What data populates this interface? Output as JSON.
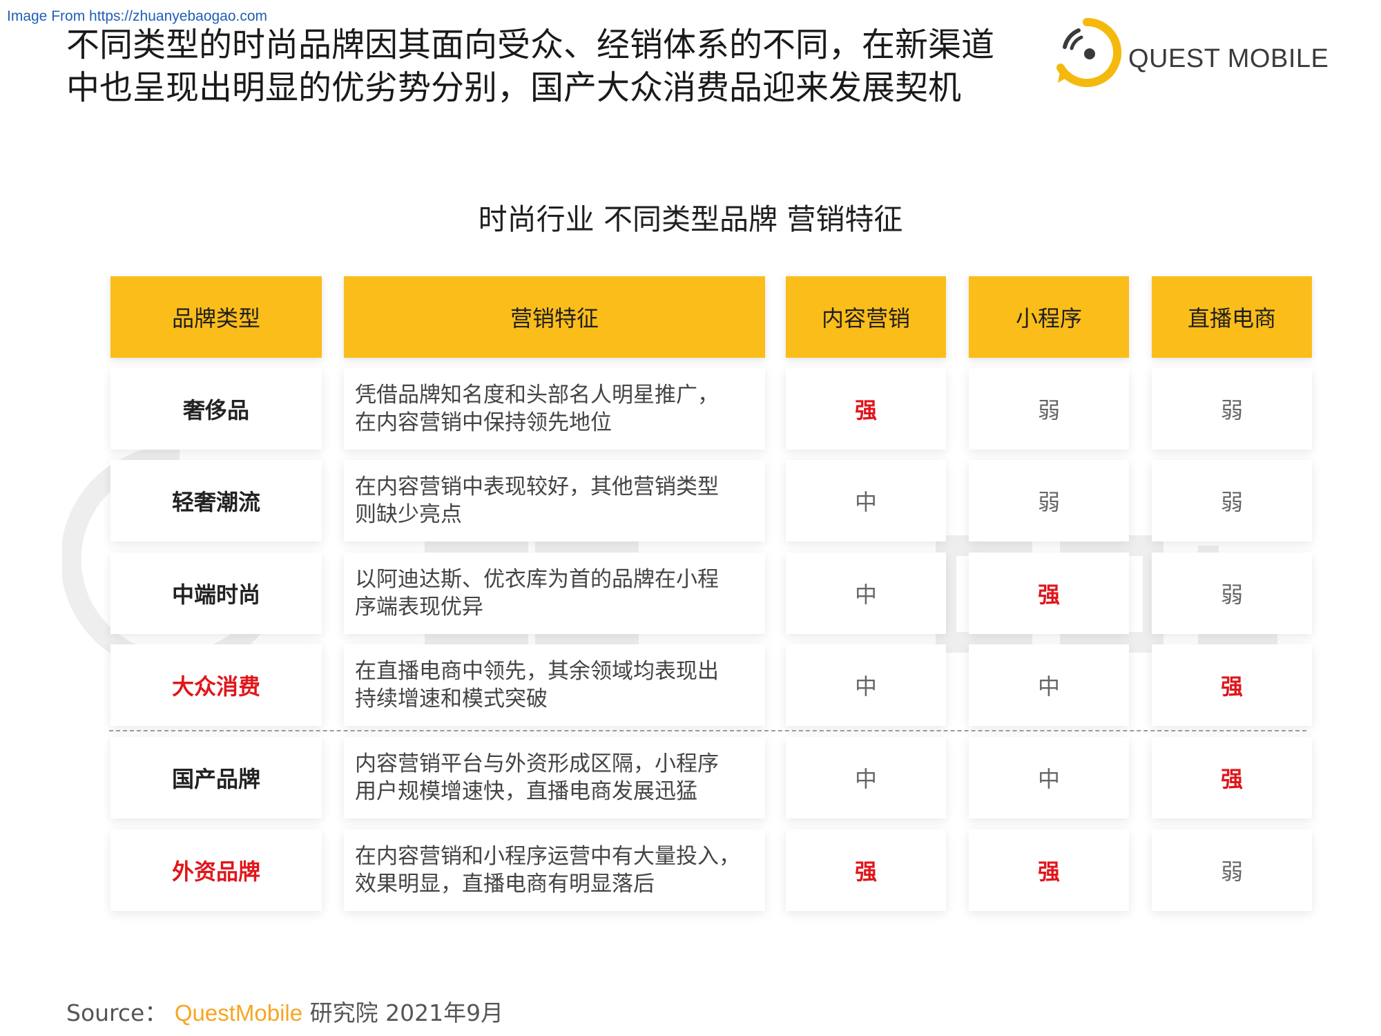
{
  "watermark_link": "Image From https://zhuanyebaogao.com",
  "title_lines": [
    "不同类型的时尚品牌因其面向受众、经销体系的不同，在新渠道",
    "中也呈现出明显的优劣势分别，国产大众消费品迎来发展契机"
  ],
  "logo": {
    "text": "QUEST MOBILE",
    "accent": "#f5b90d"
  },
  "table_title": "时尚行业 不同类型品牌 营销特征",
  "colors": {
    "header_bg": "#fbbd1a",
    "highlight": "#e0161b"
  },
  "headers": [
    "品牌类型",
    "营销特征",
    "内容营销",
    "小程序",
    "直播电商"
  ],
  "rows": [
    {
      "brand": "奢侈品",
      "brand_red": false,
      "feature": [
        "凭借品牌知名度和头部名人明星推广，",
        "在内容营销中保持领先地位"
      ],
      "content": "强",
      "mini": "弱",
      "live": "弱"
    },
    {
      "brand": "轻奢潮流",
      "brand_red": false,
      "feature": [
        "在内容营销中表现较好，其他营销类型",
        "则缺少亮点"
      ],
      "content": "中",
      "mini": "弱",
      "live": "弱"
    },
    {
      "brand": "中端时尚",
      "brand_red": false,
      "feature": [
        "以阿迪达斯、优衣库为首的品牌在小程",
        "序端表现优异"
      ],
      "content": "中",
      "mini": "强",
      "live": "弱"
    },
    {
      "brand": "大众消费",
      "brand_red": true,
      "feature": [
        "在直播电商中领先，其余领域均表现出",
        "持续增速和模式突破"
      ],
      "content": "中",
      "mini": "中",
      "live": "强"
    },
    {
      "brand": "国产品牌",
      "brand_red": false,
      "feature": [
        "内容营销平台与外资形成区隔，小程序",
        "用户规模增速快，直播电商发展迅猛"
      ],
      "content": "中",
      "mini": "中",
      "live": "强"
    },
    {
      "brand": "外资品牌",
      "brand_red": true,
      "feature": [
        "在内容营销和小程序运营中有大量投入，",
        "效果明显，直播电商有明显落后"
      ],
      "content": "强",
      "mini": "强",
      "live": "弱"
    }
  ],
  "source": {
    "label": "Source：",
    "brand": "QuestMobile",
    "rest": "研究院 2021年9月"
  }
}
